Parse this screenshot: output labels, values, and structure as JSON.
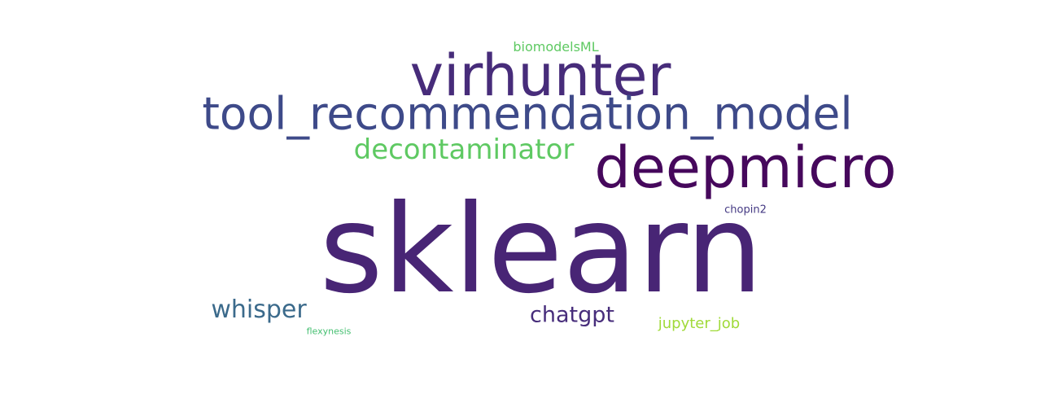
{
  "words": [
    {
      "id": "sklearn",
      "text": "sklearn",
      "color": "#482575"
    },
    {
      "id": "virhunter",
      "text": "virhunter",
      "color": "#472c7a"
    },
    {
      "id": "tool",
      "text": "tool_recommendation_model",
      "color": "#3e4a89"
    },
    {
      "id": "deepmicro",
      "text": "deepmicro",
      "color": "#46085c"
    },
    {
      "id": "decont",
      "text": "decontaminator",
      "color": "#5ec962"
    },
    {
      "id": "whisper",
      "text": "whisper",
      "color": "#3b6a8b"
    },
    {
      "id": "chatgpt",
      "text": "chatgpt",
      "color": "#472d7b"
    },
    {
      "id": "jupyter",
      "text": "jupyter_job",
      "color": "#a0da39"
    },
    {
      "id": "biomodels",
      "text": "biomodelsML",
      "color": "#5ec962"
    },
    {
      "id": "chopin",
      "text": "chopin2",
      "color": "#443983"
    },
    {
      "id": "flexy",
      "text": "flexynesis",
      "color": "#44bf70"
    }
  ]
}
